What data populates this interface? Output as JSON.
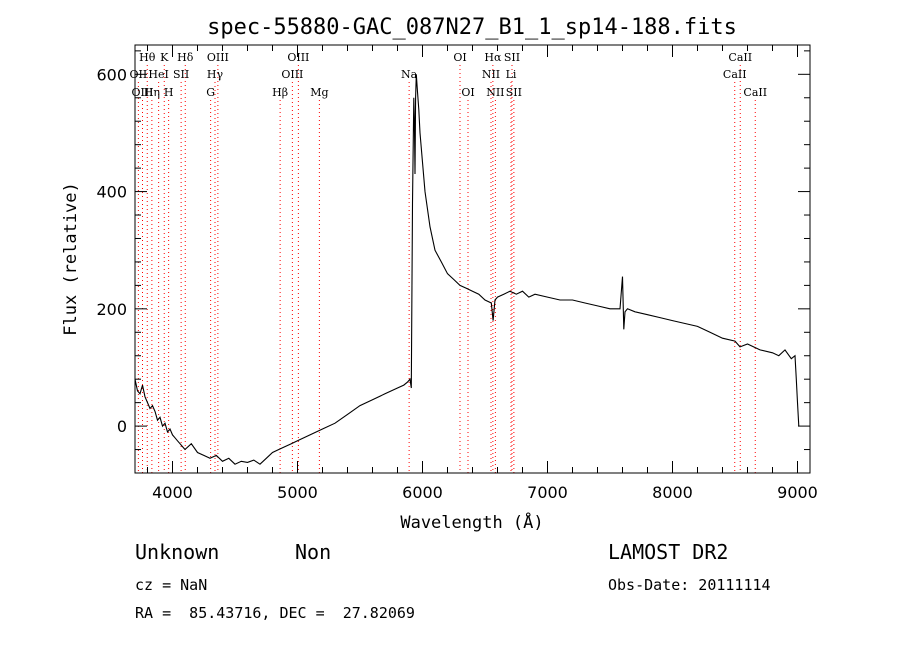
{
  "chart_data": {
    "type": "line",
    "title": "spec-55880-GAC_087N27_B1_1_sp14-188.fits",
    "xlabel": "Wavelength (Å)",
    "ylabel": "Flux (relative)",
    "xlim": [
      3700,
      9100
    ],
    "ylim": [
      -80,
      650
    ],
    "x_ticks": [
      4000,
      5000,
      6000,
      7000,
      8000,
      9000
    ],
    "y_ticks": [
      0,
      200,
      400,
      600
    ],
    "grid": false,
    "spectrum": {
      "x": [
        3700,
        3720,
        3740,
        3760,
        3780,
        3800,
        3820,
        3840,
        3860,
        3880,
        3900,
        3920,
        3940,
        3960,
        3980,
        4000,
        4020,
        4040,
        4060,
        4080,
        4100,
        4150,
        4200,
        4250,
        4300,
        4350,
        4400,
        4450,
        4500,
        4550,
        4600,
        4650,
        4700,
        4750,
        4800,
        4850,
        4900,
        4950,
        5000,
        5100,
        5200,
        5300,
        5400,
        5500,
        5600,
        5700,
        5800,
        5850,
        5880,
        5900,
        5910,
        5920,
        5930,
        5935,
        5940,
        5945,
        5950,
        5960,
        5970,
        5980,
        6000,
        6020,
        6040,
        6060,
        6080,
        6100,
        6150,
        6200,
        6250,
        6300,
        6350,
        6400,
        6450,
        6500,
        6550,
        6565,
        6580,
        6600,
        6650,
        6700,
        6750,
        6800,
        6850,
        6900,
        7000,
        7100,
        7200,
        7300,
        7400,
        7500,
        7580,
        7600,
        7610,
        7620,
        7640,
        7700,
        7800,
        7900,
        8000,
        8100,
        8200,
        8300,
        8400,
        8500,
        8540,
        8600,
        8700,
        8800,
        8850,
        8900,
        8950,
        8980,
        8990,
        9000,
        9010
      ],
      "y": [
        80,
        60,
        55,
        70,
        50,
        40,
        30,
        35,
        25,
        10,
        15,
        0,
        5,
        -10,
        -5,
        -15,
        -20,
        -25,
        -30,
        -35,
        -40,
        -30,
        -45,
        -50,
        -55,
        -50,
        -60,
        -55,
        -65,
        -60,
        -62,
        -58,
        -65,
        -55,
        -45,
        -40,
        -35,
        -30,
        -25,
        -15,
        -5,
        5,
        20,
        35,
        45,
        55,
        65,
        70,
        75,
        80,
        65,
        380,
        560,
        520,
        430,
        560,
        600,
        570,
        540,
        500,
        450,
        400,
        370,
        340,
        320,
        300,
        280,
        260,
        250,
        240,
        235,
        230,
        225,
        215,
        210,
        180,
        215,
        220,
        225,
        230,
        225,
        230,
        220,
        225,
        220,
        215,
        215,
        210,
        205,
        200,
        200,
        255,
        165,
        195,
        200,
        195,
        190,
        185,
        180,
        175,
        170,
        160,
        150,
        145,
        135,
        140,
        130,
        125,
        120,
        130,
        115,
        120,
        80,
        40,
        0
      ]
    },
    "lines": [
      {
        "name": "Hθ",
        "wl": 3798,
        "row": 0
      },
      {
        "name": "OII",
        "wl": 3727,
        "row": 1
      },
      {
        "name": "OIII",
        "wl": 3760,
        "row": 2
      },
      {
        "name": "Hη",
        "wl": 3835,
        "row": 2
      },
      {
        "name": "HeI",
        "wl": 3889,
        "row": 1
      },
      {
        "name": "K",
        "wl": 3934,
        "row": 0
      },
      {
        "name": "SII",
        "wl": 4069,
        "row": 1
      },
      {
        "name": "H",
        "wl": 3969,
        "row": 2
      },
      {
        "name": "Hδ",
        "wl": 4102,
        "row": 0
      },
      {
        "name": "OIII",
        "wl": 4363,
        "row": 0
      },
      {
        "name": "Hγ",
        "wl": 4340,
        "row": 1
      },
      {
        "name": "G",
        "wl": 4305,
        "row": 2
      },
      {
        "name": "Hβ",
        "wl": 4861,
        "row": 2
      },
      {
        "name": "OIII",
        "wl": 5007,
        "row": 0
      },
      {
        "name": "OIII",
        "wl": 4959,
        "row": 1
      },
      {
        "name": "Mg",
        "wl": 5175,
        "row": 2
      },
      {
        "name": "Na",
        "wl": 5893,
        "row": 1
      },
      {
        "name": "OI",
        "wl": 6300,
        "row": 0
      },
      {
        "name": "OI",
        "wl": 6364,
        "row": 2
      },
      {
        "name": "Hα",
        "wl": 6563,
        "row": 0
      },
      {
        "name": "NII",
        "wl": 6548,
        "row": 1
      },
      {
        "name": "NII",
        "wl": 6583,
        "row": 2
      },
      {
        "name": "SII",
        "wl": 6716,
        "row": 0
      },
      {
        "name": "Li",
        "wl": 6708,
        "row": 1
      },
      {
        "name": "SII",
        "wl": 6731,
        "row": 2
      },
      {
        "name": "CaII",
        "wl": 8542,
        "row": 0
      },
      {
        "name": "CaII",
        "wl": 8498,
        "row": 1
      },
      {
        "name": "CaII",
        "wl": 8662,
        "row": 2
      }
    ]
  },
  "info": {
    "class": "Unknown",
    "subclass": "Non",
    "survey": "LAMOST DR2",
    "cz": "cz = NaN",
    "obsdate": "Obs-Date: 20111114",
    "radec": "RA =  85.43716, DEC =  27.82069"
  }
}
